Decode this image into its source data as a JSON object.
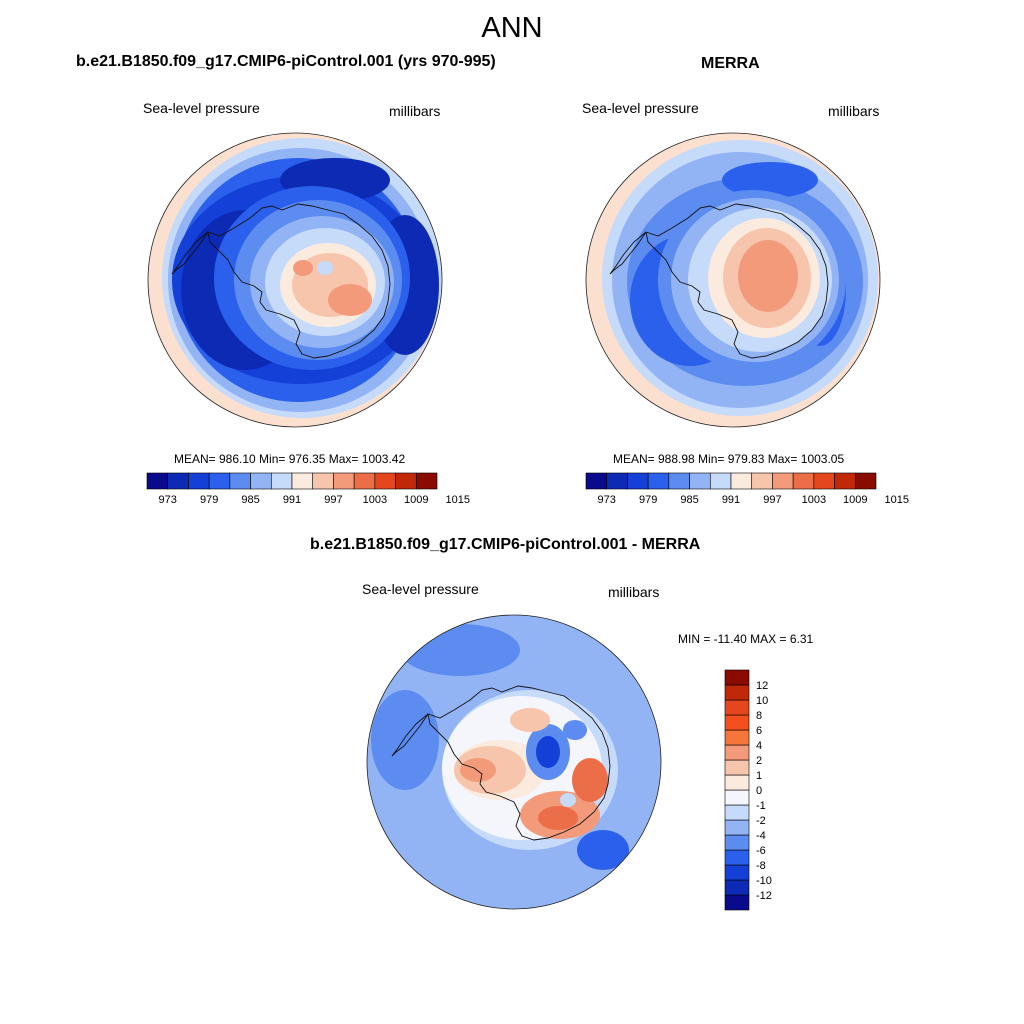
{
  "title": "ANN",
  "panels": [
    {
      "title": "b.e21.B1850.f09_g17.CMIP6-piControl.001 (yrs 970-995)",
      "left_label": "Sea-level pressure",
      "right_label": "millibars",
      "stats": "MEAN= 986.10  Min= 976.35  Max= 1003.42"
    },
    {
      "title": "MERRA",
      "left_label": "Sea-level pressure",
      "right_label": "millibars",
      "stats": "MEAN= 988.98  Min= 979.83  Max= 1003.05"
    },
    {
      "title": "b.e21.B1850.f09_g17.CMIP6-piControl.001 - MERRA",
      "left_label": "Sea-level pressure",
      "right_label": "millibars",
      "stats": "MIN = -11.40 MAX =   6.31"
    }
  ],
  "colorbar_abs": {
    "colors": [
      "#0a0a8c",
      "#0c2ab4",
      "#1440d8",
      "#2a60ec",
      "#5c8cf0",
      "#93b4f4",
      "#c6dafa",
      "#fbeade",
      "#f7c4ac",
      "#f29a7a",
      "#ec6e48",
      "#e4461e",
      "#c02808",
      "#8a0c00"
    ],
    "labels": [
      "973",
      "979",
      "985",
      "991",
      "997",
      "1003",
      "1009",
      "1015"
    ]
  },
  "colorbar_diff": {
    "colors": [
      "#0a0a8c",
      "#0c2ab4",
      "#1440d8",
      "#2a60ec",
      "#5c8cf0",
      "#93b4f4",
      "#c6dafa",
      "#f4f6fc",
      "#fbeade",
      "#f7c4ac",
      "#f29a7a",
      "#f5753a",
      "#f4501e",
      "#e4461e",
      "#c02808",
      "#8a0c00"
    ],
    "labels": [
      "12",
      "10",
      "8",
      "6",
      "4",
      "2",
      "1",
      "0",
      "-1",
      "-2",
      "-4",
      "-6",
      "-8",
      "-10",
      "-12"
    ]
  }
}
